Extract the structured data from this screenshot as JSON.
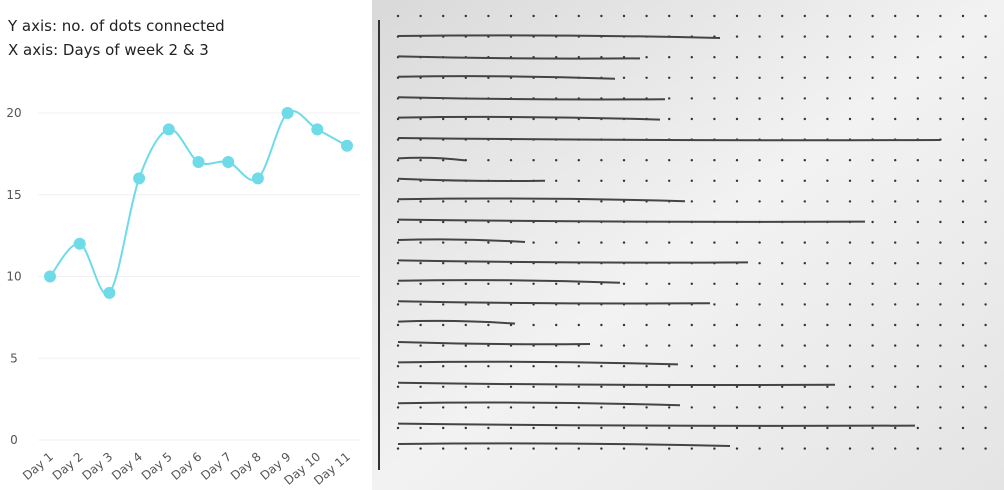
{
  "chart_data": {
    "type": "line",
    "annotations": [
      "Y axis: no. of dots connected",
      "X axis: Days of week 2 & 3"
    ],
    "categories": [
      "Day 1",
      "Day 2",
      "Day 3",
      "Day 4",
      "Day 5",
      "Day 6",
      "Day 7",
      "Day 8",
      "Day 9",
      "Day 10",
      "Day 11"
    ],
    "values": [
      10,
      12,
      9,
      16,
      19,
      17,
      17,
      16,
      20,
      19,
      18
    ],
    "color": "#6fdbe8",
    "ylim": [
      0,
      20
    ],
    "yticks": [
      0,
      5,
      10,
      15,
      20
    ],
    "grid": true
  }
}
